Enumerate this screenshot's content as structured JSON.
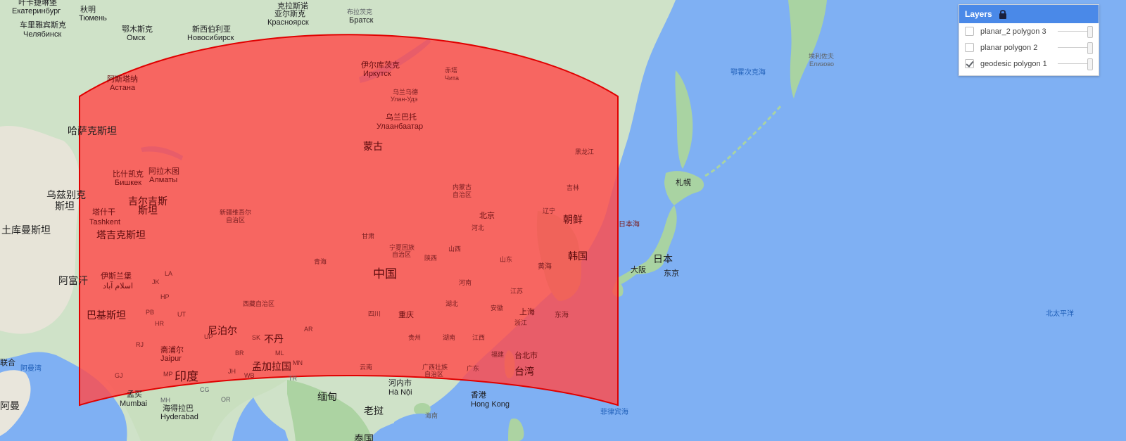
{
  "map": {
    "colors": {
      "water": "#7fb0f3",
      "land": "#ccdfc5",
      "land_green": "#a9d3a2",
      "desert": "#e9e6dd",
      "polygon_fill": "#ff4a4a",
      "polygon_stroke": "#e00000"
    },
    "labels": [
      {
        "id": "yekaterinburg-zh",
        "text": "叶卡捷琳堡",
        "cls": "city"
      },
      {
        "id": "yekaterinburg-ru",
        "text": "Екатеринбург",
        "cls": "city-en"
      },
      {
        "id": "tyumen-zh",
        "text": "秋明",
        "cls": "city"
      },
      {
        "id": "tyumen-ru",
        "text": "Тюмень",
        "cls": "city-en"
      },
      {
        "id": "chelyabinsk-zh",
        "text": "车里雅宾斯克",
        "cls": "city"
      },
      {
        "id": "chelyabinsk-ru",
        "text": "Челябинск",
        "cls": "city-en"
      },
      {
        "id": "omsk-zh",
        "text": "鄂木斯克",
        "cls": "city"
      },
      {
        "id": "omsk-ru",
        "text": "Омск",
        "cls": "city-en"
      },
      {
        "id": "novosibirsk-zh",
        "text": "新西伯利亚",
        "cls": "city"
      },
      {
        "id": "novosibirsk-ru",
        "text": "Новосибирск",
        "cls": "city-en"
      },
      {
        "id": "krasnoyarsk-zh",
        "text": "克拉斯诺",
        "cls": "city"
      },
      {
        "id": "krasnoyarsk-zh2",
        "text": "亚尔斯克",
        "cls": "city"
      },
      {
        "id": "krasnoyarsk-ru",
        "text": "Красноярск",
        "cls": "city-en"
      },
      {
        "id": "bratsk-zh",
        "text": "布拉茨克",
        "cls": "region"
      },
      {
        "id": "bratsk-ru",
        "text": "Братск",
        "cls": "city-en"
      },
      {
        "id": "astana-zh",
        "text": "阿斯塔纳",
        "cls": "city",
        "poly": true
      },
      {
        "id": "astana-ru",
        "text": "Астана",
        "cls": "city-en",
        "poly": true
      },
      {
        "id": "kazakhstan",
        "text": "哈萨克斯坦",
        "cls": "country"
      },
      {
        "id": "irkutsk-zh",
        "text": "伊尔库茨克",
        "cls": "city",
        "poly": true
      },
      {
        "id": "irkutsk-ru",
        "text": "Иркутск",
        "cls": "city-en",
        "poly": true
      },
      {
        "id": "chita-zh",
        "text": "赤塔",
        "cls": "region",
        "poly": true
      },
      {
        "id": "chita-ru",
        "text": "Чита",
        "cls": "region",
        "poly": true
      },
      {
        "id": "ulanude-zh",
        "text": "乌兰乌德",
        "cls": "region",
        "poly": true
      },
      {
        "id": "ulanude-ru",
        "text": "Улан-Удэ",
        "cls": "region",
        "poly": true
      },
      {
        "id": "ulaanbaatar-zh",
        "text": "乌兰巴托",
        "cls": "city",
        "poly": true
      },
      {
        "id": "ulaanbaatar-mn",
        "text": "Улаанбаатар",
        "cls": "city-en",
        "poly": true
      },
      {
        "id": "mongolia",
        "text": "蒙古",
        "cls": "country",
        "poly": true
      },
      {
        "id": "bishkek-zh",
        "text": "比什凯克",
        "cls": "city",
        "poly": true
      },
      {
        "id": "bishkek-ru",
        "text": "Бишкек",
        "cls": "city-en",
        "poly": true
      },
      {
        "id": "almaty-zh",
        "text": "阿拉木图",
        "cls": "city",
        "poly": true
      },
      {
        "id": "almaty-ru",
        "text": "Алматы",
        "cls": "city-en",
        "poly": true
      },
      {
        "id": "uzbekistan-1",
        "text": "乌兹别克",
        "cls": "country"
      },
      {
        "id": "uzbekistan-2",
        "text": "斯坦",
        "cls": "country"
      },
      {
        "id": "kyrgyzstan-1",
        "text": "吉尔吉斯",
        "cls": "country",
        "poly": true
      },
      {
        "id": "kyrgyzstan-2",
        "text": "斯坦",
        "cls": "country",
        "poly": true
      },
      {
        "id": "tashkent-zh",
        "text": "塔什干",
        "cls": "city",
        "poly": true
      },
      {
        "id": "tashkent-en",
        "text": "Tashkent",
        "cls": "city-en",
        "poly": true
      },
      {
        "id": "turkmenistan",
        "text": "土库曼斯坦",
        "cls": "country"
      },
      {
        "id": "tajikistan",
        "text": "塔吉克斯坦",
        "cls": "country",
        "poly": true
      },
      {
        "id": "xinjiang-1",
        "text": "新疆维吾尔",
        "cls": "region",
        "poly": true
      },
      {
        "id": "xinjiang-2",
        "text": "自治区",
        "cls": "region",
        "poly": true
      },
      {
        "id": "afghanistan",
        "text": "阿富汗",
        "cls": "country"
      },
      {
        "id": "islamabad-zh",
        "text": "伊斯兰堡",
        "cls": "city",
        "poly": true
      },
      {
        "id": "islamabad-ur",
        "text": "اسلام آباد",
        "cls": "city-en",
        "poly": true
      },
      {
        "id": "la",
        "text": "LA",
        "cls": "region",
        "poly": true
      },
      {
        "id": "jk",
        "text": "JK",
        "cls": "region",
        "poly": true
      },
      {
        "id": "hp",
        "text": "HP",
        "cls": "region",
        "poly": true
      },
      {
        "id": "pb",
        "text": "PB",
        "cls": "region",
        "poly": true
      },
      {
        "id": "hr",
        "text": "HR",
        "cls": "region",
        "poly": true
      },
      {
        "id": "ut",
        "text": "UT",
        "cls": "region",
        "poly": true
      },
      {
        "id": "rj",
        "text": "RJ",
        "cls": "region",
        "poly": true
      },
      {
        "id": "gj",
        "text": "GJ",
        "cls": "region",
        "poly": true
      },
      {
        "id": "mp",
        "text": "MP",
        "cls": "region",
        "poly": true
      },
      {
        "id": "br",
        "text": "BR",
        "cls": "region",
        "poly": true
      },
      {
        "id": "jh",
        "text": "JH",
        "cls": "region",
        "poly": true
      },
      {
        "id": "wb",
        "text": "WB",
        "cls": "region",
        "poly": true
      },
      {
        "id": "sk",
        "text": "SK",
        "cls": "region",
        "poly": true
      },
      {
        "id": "ar",
        "text": "AR",
        "cls": "region",
        "poly": true
      },
      {
        "id": "ml",
        "text": "ML",
        "cls": "region",
        "poly": true
      },
      {
        "id": "mn",
        "text": "MN",
        "cls": "region",
        "poly": true
      },
      {
        "id": "up",
        "text": "UP",
        "cls": "region",
        "poly": true
      },
      {
        "id": "cg",
        "text": "CG",
        "cls": "region"
      },
      {
        "id": "mh",
        "text": "MH",
        "cls": "region"
      },
      {
        "id": "or",
        "text": "OR",
        "cls": "region"
      },
      {
        "id": "tr",
        "text": "TR",
        "cls": "region"
      },
      {
        "id": "pakistan",
        "text": "巴基斯坦",
        "cls": "country",
        "poly": true
      },
      {
        "id": "nepal",
        "text": "尼泊尔",
        "cls": "country",
        "poly": true
      },
      {
        "id": "bhutan",
        "text": "不丹",
        "cls": "country",
        "poly": true
      },
      {
        "id": "jaipur-zh",
        "text": "斋浦尔",
        "cls": "city",
        "poly": true
      },
      {
        "id": "jaipur-en",
        "text": "Jaipur",
        "cls": "city-en",
        "poly": true
      },
      {
        "id": "bangladesh",
        "text": "孟加拉国",
        "cls": "country",
        "poly": true
      },
      {
        "id": "india",
        "text": "印度",
        "cls": "country-big",
        "poly": true
      },
      {
        "id": "mumbai-zh",
        "text": "孟买",
        "cls": "city"
      },
      {
        "id": "mumbai-en",
        "text": "Mumbai",
        "cls": "city-en"
      },
      {
        "id": "hyderabad-zh",
        "text": "海得拉巴",
        "cls": "city"
      },
      {
        "id": "hyderabad-en",
        "text": "Hyderabad",
        "cls": "city-en"
      },
      {
        "id": "tibet",
        "text": "西藏自治区",
        "cls": "region",
        "poly": true
      },
      {
        "id": "qinghai",
        "text": "青海",
        "cls": "region",
        "poly": true
      },
      {
        "id": "gansu",
        "text": "甘肃",
        "cls": "region",
        "poly": true
      },
      {
        "id": "ningxia-1",
        "text": "宁夏回族",
        "cls": "region",
        "poly": true
      },
      {
        "id": "ningxia-2",
        "text": "自治区",
        "cls": "region",
        "poly": true
      },
      {
        "id": "shaanxi",
        "text": "陕西",
        "cls": "region",
        "poly": true
      },
      {
        "id": "shanxi",
        "text": "山西",
        "cls": "region",
        "poly": true
      },
      {
        "id": "hebei",
        "text": "河北",
        "cls": "region",
        "poly": true
      },
      {
        "id": "shandong",
        "text": "山东",
        "cls": "region",
        "poly": true
      },
      {
        "id": "henan",
        "text": "河南",
        "cls": "region",
        "poly": true
      },
      {
        "id": "jiangsu",
        "text": "江苏",
        "cls": "region",
        "poly": true
      },
      {
        "id": "anhui",
        "text": "安徽",
        "cls": "region",
        "poly": true
      },
      {
        "id": "hubei",
        "text": "湖北",
        "cls": "region",
        "poly": true
      },
      {
        "id": "sichuan",
        "text": "四川",
        "cls": "region",
        "poly": true
      },
      {
        "id": "guizhou",
        "text": "贵州",
        "cls": "region",
        "poly": true
      },
      {
        "id": "hunan",
        "text": "湖南",
        "cls": "region",
        "poly": true
      },
      {
        "id": "jiangxi",
        "text": "江西",
        "cls": "region",
        "poly": true
      },
      {
        "id": "zhejiang",
        "text": "浙江",
        "cls": "region",
        "poly": true
      },
      {
        "id": "fujian",
        "text": "福建",
        "cls": "region",
        "poly": true
      },
      {
        "id": "yunnan",
        "text": "云南",
        "cls": "region",
        "poly": true
      },
      {
        "id": "guangxi-1",
        "text": "广西壮族",
        "cls": "region",
        "poly": true
      },
      {
        "id": "guangxi-2",
        "text": "自治区",
        "cls": "region",
        "poly": true
      },
      {
        "id": "guangdong",
        "text": "广东",
        "cls": "region",
        "poly": true
      },
      {
        "id": "innermongolia-1",
        "text": "内蒙古",
        "cls": "region",
        "poly": true
      },
      {
        "id": "innermongolia-2",
        "text": "自治区",
        "cls": "region",
        "poly": true
      },
      {
        "id": "heilongjiang",
        "text": "黑龙江",
        "cls": "region",
        "poly": true
      },
      {
        "id": "jilin",
        "text": "吉林",
        "cls": "region",
        "poly": true
      },
      {
        "id": "liaoning",
        "text": "辽宁",
        "cls": "region",
        "poly": true
      },
      {
        "id": "china",
        "text": "中国",
        "cls": "country-big",
        "poly": true
      },
      {
        "id": "beijing",
        "text": "北京",
        "cls": "city",
        "poly": true
      },
      {
        "id": "chongqing",
        "text": "重庆",
        "cls": "city",
        "poly": true
      },
      {
        "id": "shanghai",
        "text": "上海",
        "cls": "city",
        "poly": true
      },
      {
        "id": "taipei",
        "text": "台北市",
        "cls": "city",
        "poly": true
      },
      {
        "id": "taiwan",
        "text": "台湾",
        "cls": "country",
        "poly": true
      },
      {
        "id": "north-korea",
        "text": "朝鲜",
        "cls": "country",
        "poly": true
      },
      {
        "id": "south-korea",
        "text": "韩国",
        "cls": "country",
        "poly": true
      },
      {
        "id": "yellow-sea",
        "text": "黄海",
        "cls": "sea",
        "poly": true
      },
      {
        "id": "east-china-sea",
        "text": "东海",
        "cls": "sea",
        "poly": true
      },
      {
        "id": "sea-of-japan",
        "text": "日本海",
        "cls": "sea",
        "poly": true
      },
      {
        "id": "hanoi-zh",
        "text": "河内市",
        "cls": "city"
      },
      {
        "id": "hanoi-vi",
        "text": "Hà Nội",
        "cls": "city-en"
      },
      {
        "id": "myanmar",
        "text": "缅甸",
        "cls": "country"
      },
      {
        "id": "laos",
        "text": "老挝",
        "cls": "country"
      },
      {
        "id": "hongkong-zh",
        "text": "香港",
        "cls": "city"
      },
      {
        "id": "hongkong-en",
        "text": "Hong Kong",
        "cls": "city-en"
      },
      {
        "id": "hainan",
        "text": "海南",
        "cls": "region"
      },
      {
        "id": "thailand",
        "text": "泰国",
        "cls": "country"
      },
      {
        "id": "philippine-sea",
        "text": "菲律宾海",
        "cls": "sea"
      },
      {
        "id": "north-pacific",
        "text": "北太平洋",
        "cls": "sea"
      },
      {
        "id": "okhotsk-sea",
        "text": "鄂霍次克海",
        "cls": "sea"
      },
      {
        "id": "yuzhno-zh",
        "text": "埃利佐夫",
        "cls": "region"
      },
      {
        "id": "yuzhno-ru",
        "text": "Елизово",
        "cls": "region"
      },
      {
        "id": "sapporo",
        "text": "札幌",
        "cls": "city"
      },
      {
        "id": "japan",
        "text": "日本",
        "cls": "country"
      },
      {
        "id": "tokyo",
        "text": "东京",
        "cls": "city"
      },
      {
        "id": "osaka",
        "text": "大阪",
        "cls": "city"
      },
      {
        "id": "gulf-oman",
        "text": "阿曼湾",
        "cls": "sea"
      },
      {
        "id": "uae-1",
        "text": "联合",
        "cls": "city"
      },
      {
        "id": "oman",
        "text": "阿曼",
        "cls": "country"
      }
    ]
  },
  "layers_panel": {
    "title": "Layers",
    "lock_icon": "lock-icon",
    "items": [
      {
        "name": "planar_2 polygon 3",
        "checked": false
      },
      {
        "name": "planar polygon 2",
        "checked": false
      },
      {
        "name": "geodesic polygon 1",
        "checked": true
      }
    ]
  }
}
